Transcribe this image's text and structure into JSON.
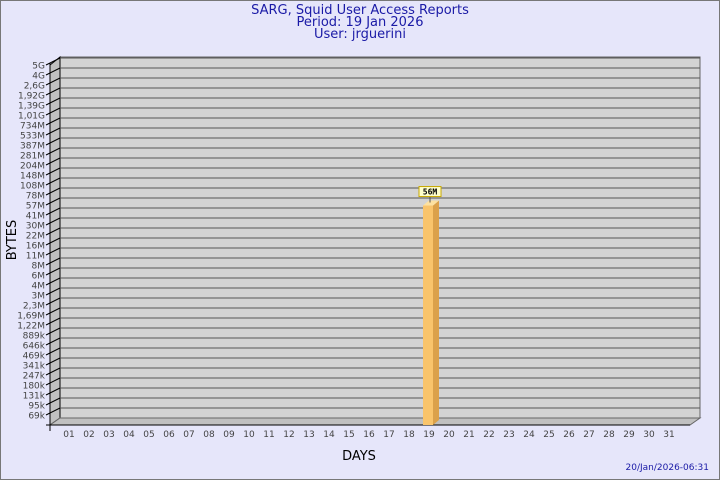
{
  "chart_data": {
    "type": "bar",
    "title": "SARG, Squid User Access Reports",
    "subtitle_period": "Period: 19 Jan 2026",
    "subtitle_user": "User: jrguerini",
    "xlabel": "DAYS",
    "ylabel": "BYTES",
    "footer": "20/Jan/2026-06:31",
    "y_scale": "log",
    "y_ticks": [
      "5G",
      "4G",
      "2,6G",
      "1,92G",
      "1,39G",
      "1,01G",
      "734M",
      "533M",
      "387M",
      "281M",
      "204M",
      "148M",
      "108M",
      "78M",
      "57M",
      "41M",
      "30M",
      "22M",
      "16M",
      "11M",
      "8M",
      "6M",
      "4M",
      "3M",
      "2,3M",
      "1,69M",
      "1,22M",
      "889k",
      "646k",
      "469k",
      "341k",
      "247k",
      "180k",
      "131k",
      "95k",
      "69k"
    ],
    "categories": [
      "01",
      "02",
      "03",
      "04",
      "05",
      "06",
      "07",
      "08",
      "09",
      "10",
      "11",
      "12",
      "13",
      "14",
      "15",
      "16",
      "17",
      "18",
      "19",
      "20",
      "21",
      "22",
      "23",
      "24",
      "25",
      "26",
      "27",
      "28",
      "29",
      "30",
      "31"
    ],
    "bars": [
      {
        "day": "19",
        "value_bytes": 56000000,
        "label": "56M"
      }
    ],
    "grid": true,
    "colors": {
      "background": "#e6e6fa",
      "wall": "#d3d3d3",
      "side_wall": "#c0c0c0",
      "bar": "#f9c46b",
      "bar_side": "#dba14a",
      "title": "#1a1aa6",
      "label_box": "#ffffcc"
    }
  }
}
